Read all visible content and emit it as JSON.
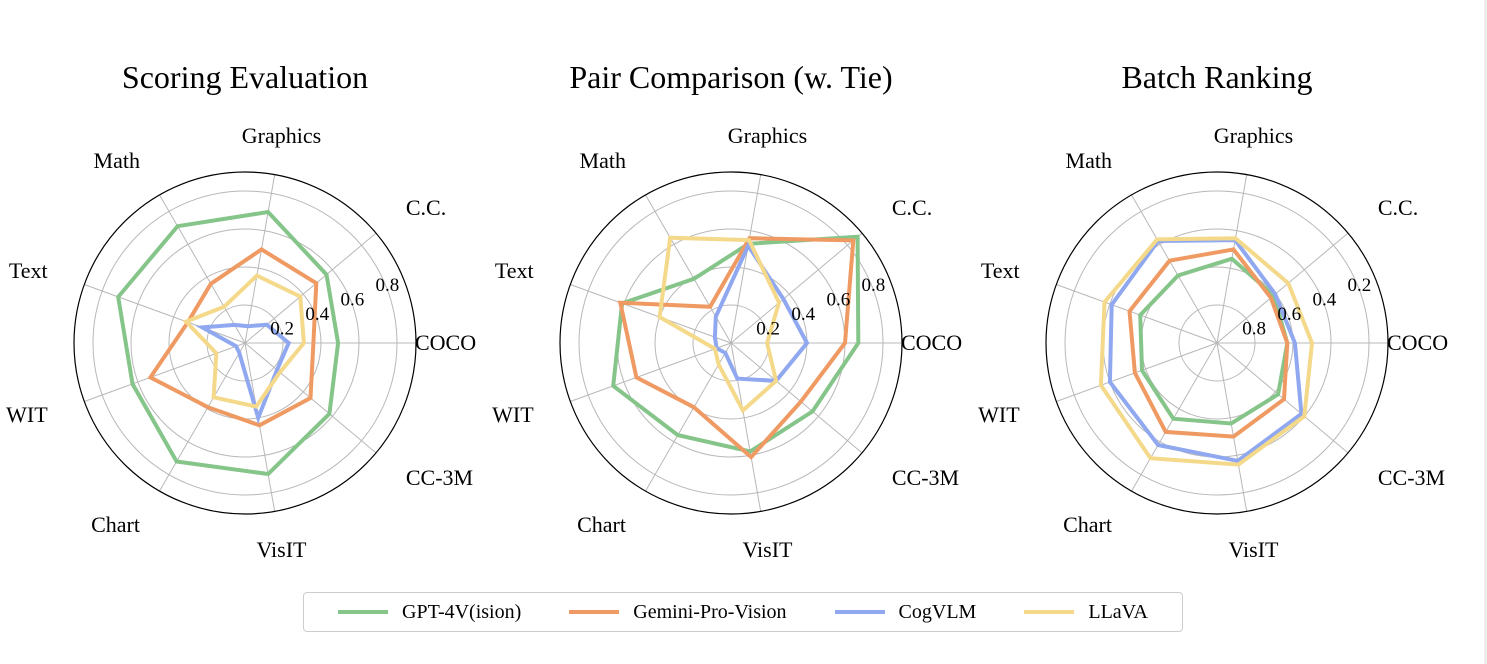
{
  "colors": {
    "GPT-4V(ision)": "#86c58a",
    "Gemini-Pro-Vision": "#ef9a63",
    "CogVLM": "#90a8f0",
    "LLaVA": "#f4d98a"
  },
  "legend": {
    "items": [
      "GPT-4V(ision)",
      "Gemini-Pro-Vision",
      "CogVLM",
      "LLaVA"
    ]
  },
  "chart_data": [
    {
      "type": "radar",
      "title": "Scoring Evaluation",
      "categories": [
        "COCO",
        "C.C.",
        "Graphics",
        "Math",
        "Text",
        "WIT",
        "Chart",
        "VisIT",
        "CC-3M"
      ],
      "rlim": [
        0,
        0.9
      ],
      "rticks": [
        0.2,
        0.4,
        0.6,
        0.8
      ],
      "rtick_labels": [
        "0.2",
        "0.4",
        "0.6",
        "0.8"
      ],
      "reversed": false,
      "series": [
        {
          "name": "GPT-4V(ision)",
          "values": [
            0.49,
            0.56,
            0.7,
            0.71,
            0.71,
            0.63,
            0.72,
            0.7,
            0.58
          ]
        },
        {
          "name": "Gemini-Pro-Vision",
          "values": [
            0.36,
            0.49,
            0.5,
            0.36,
            0.32,
            0.53,
            0.39,
            0.44,
            0.45
          ]
        },
        {
          "name": "CogVLM",
          "values": [
            0.23,
            0.15,
            0.09,
            0.11,
            0.24,
            0.05,
            0.06,
            0.4,
            0.22
          ]
        },
        {
          "name": "LLaVA",
          "values": [
            0.31,
            0.38,
            0.36,
            0.22,
            0.33,
            0.16,
            0.33,
            0.34,
            0.24
          ]
        }
      ]
    },
    {
      "type": "radar",
      "title": "Pair Comparison (w. Tie)",
      "categories": [
        "COCO",
        "C.C.",
        "Graphics",
        "Math",
        "Text",
        "WIT",
        "Chart",
        "VisIT",
        "CC-3M"
      ],
      "rlim": [
        0,
        0.9
      ],
      "rticks": [
        0.2,
        0.4,
        0.6,
        0.8
      ],
      "rtick_labels": [
        "0.2",
        "0.4",
        "0.6",
        "0.8"
      ],
      "reversed": false,
      "series": [
        {
          "name": "GPT-4V(ision)",
          "values": [
            0.67,
            0.87,
            0.53,
            0.39,
            0.61,
            0.66,
            0.56,
            0.58,
            0.56
          ]
        },
        {
          "name": "Gemini-Pro-Vision",
          "values": [
            0.6,
            0.84,
            0.56,
            0.22,
            0.62,
            0.53,
            0.39,
            0.61,
            0.48
          ]
        },
        {
          "name": "CogVLM",
          "values": [
            0.4,
            0.36,
            0.52,
            0.16,
            0.09,
            0.08,
            0.06,
            0.19,
            0.31
          ]
        },
        {
          "name": "LLaVA",
          "values": [
            0.19,
            0.33,
            0.55,
            0.64,
            0.4,
            0.09,
            0.13,
            0.36,
            0.31
          ]
        }
      ]
    },
    {
      "type": "radar",
      "title": "Batch Ranking",
      "categories": [
        "COCO",
        "C.C.",
        "Graphics",
        "Math",
        "Text",
        "WIT",
        "Chart",
        "VisIT",
        "CC-3M"
      ],
      "rlim": [
        0,
        0.9
      ],
      "rticks": [
        0.2,
        0.4,
        0.6,
        0.8
      ],
      "rtick_labels": [
        "0.8",
        "0.6",
        "0.4",
        "0.2"
      ],
      "reversed": true,
      "series": [
        {
          "name": "GPT-4V(ision)",
          "values": [
            0.53,
            0.51,
            0.45,
            0.49,
            0.47,
            0.48,
            0.44,
            0.47,
            0.48
          ]
        },
        {
          "name": "Gemini-Pro-Vision",
          "values": [
            0.53,
            0.53,
            0.4,
            0.4,
            0.41,
            0.44,
            0.36,
            0.4,
            0.44
          ]
        },
        {
          "name": "CogVLM",
          "values": [
            0.49,
            0.5,
            0.35,
            0.28,
            0.31,
            0.3,
            0.28,
            0.27,
            0.32
          ]
        },
        {
          "name": "LLaVA",
          "values": [
            0.4,
            0.41,
            0.34,
            0.27,
            0.27,
            0.25,
            0.2,
            0.25,
            0.3
          ]
        }
      ]
    }
  ]
}
